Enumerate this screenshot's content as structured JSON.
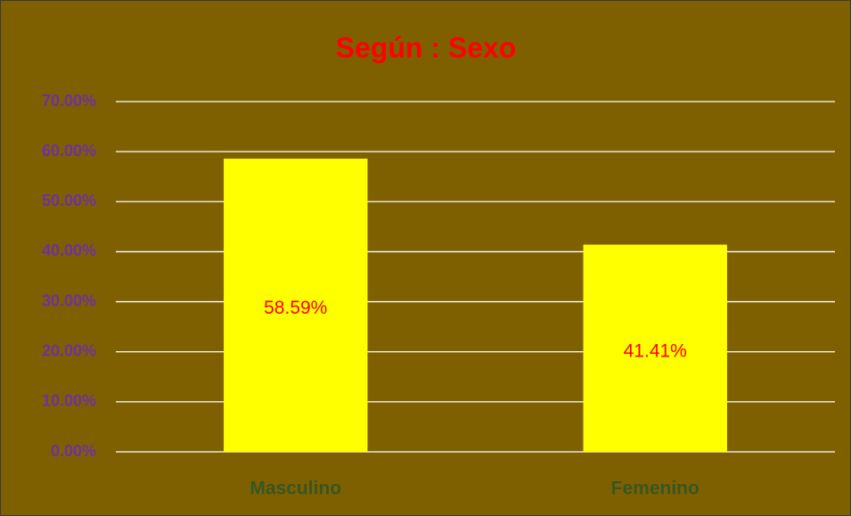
{
  "chart_data": {
    "type": "bar",
    "title": "Según : Sexo",
    "categories": [
      "Masculino",
      "Femenino"
    ],
    "values": [
      58.59,
      41.41
    ],
    "value_labels": [
      "58.59%",
      "41.41%"
    ],
    "color": "#ffff00",
    "ylim": [
      0,
      70
    ],
    "yticks": [
      {
        "value": 0,
        "label": "0.00%"
      },
      {
        "value": 10,
        "label": "10.00%"
      },
      {
        "value": 20,
        "label": "20.00%"
      },
      {
        "value": 30,
        "label": "30.00%"
      },
      {
        "value": 40,
        "label": "40.00%"
      },
      {
        "value": 50,
        "label": "50.00%"
      },
      {
        "value": 60,
        "label": "60.00%"
      },
      {
        "value": 70,
        "label": "70.00%"
      }
    ],
    "grid": true
  }
}
